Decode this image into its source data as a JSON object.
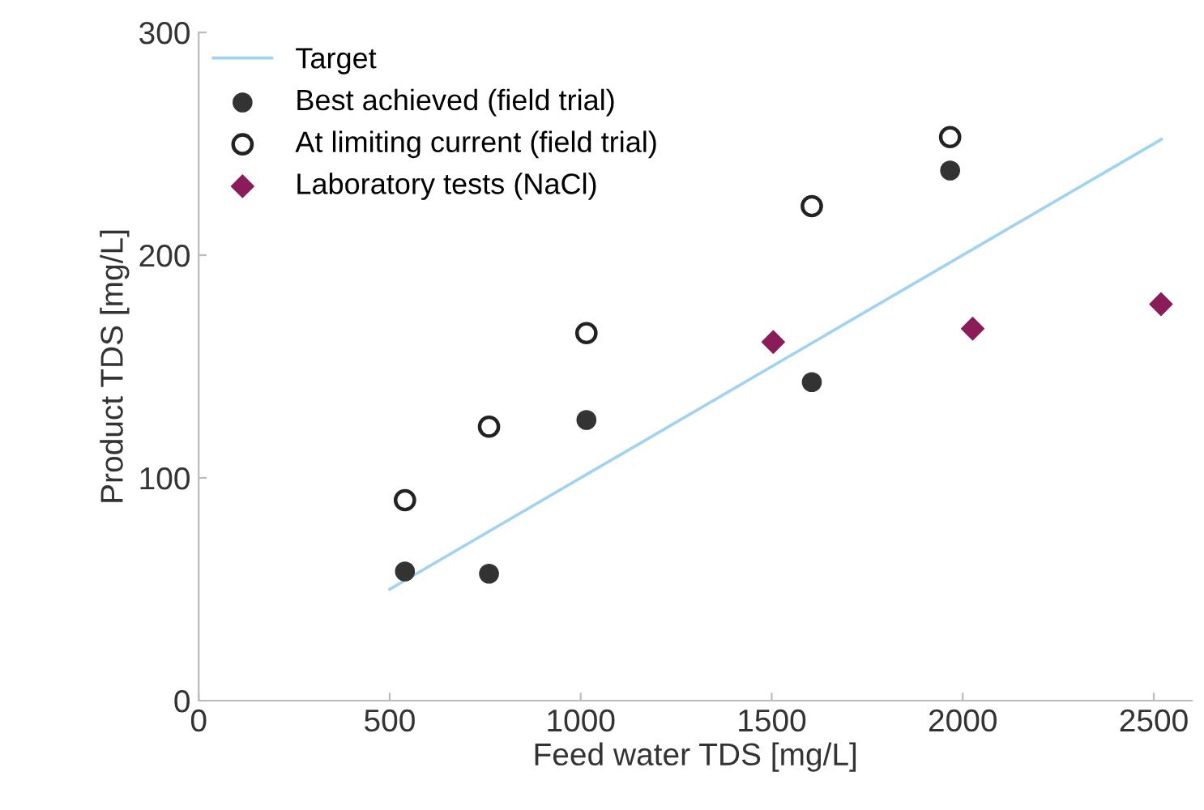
{
  "chart_data": {
    "type": "scatter",
    "xlabel": "Feed water TDS [mg/L]",
    "ylabel": "Product TDS [mg/L]",
    "series": [
      {
        "name": "Target",
        "type": "line",
        "color": "#9fd3f0",
        "x": [
          500,
          2520
        ],
        "values": [
          50,
          252
        ],
        "marker": "none"
      },
      {
        "name": "Best achieved (field trial)",
        "color": "#333333",
        "x": [
          540,
          760,
          1015,
          1605,
          1967
        ],
        "values": [
          58,
          57,
          126,
          143,
          238
        ],
        "marker": "circle"
      },
      {
        "name": "At limiting current (field trial)",
        "color": "#222222",
        "x": [
          540,
          760,
          1015,
          1605,
          1967
        ],
        "values": [
          90,
          123,
          165,
          222,
          253
        ],
        "marker": "open circle"
      },
      {
        "name": "Laboratory tests (NaCl)",
        "color": "#8b1c5a",
        "x": [
          1504,
          2026,
          2519
        ],
        "values": [
          161,
          167,
          178
        ],
        "marker": "diamond"
      }
    ],
    "xlim": [
      0,
      2600
    ],
    "ylim": [
      0,
      300
    ],
    "xticks": [
      0,
      500,
      1000,
      1500,
      2000,
      2500
    ],
    "yticks": [
      0,
      100,
      200,
      300
    ],
    "grid": false,
    "legend": "top left"
  }
}
